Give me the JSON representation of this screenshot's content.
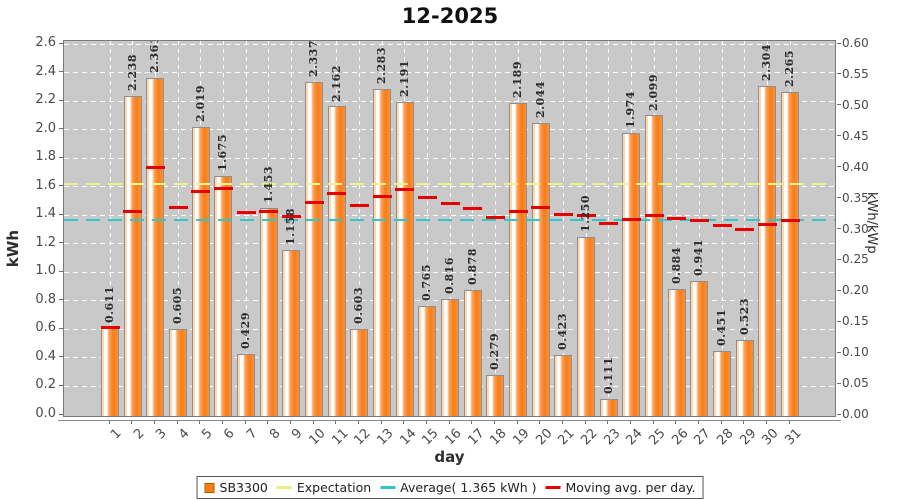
{
  "title": "12-2025",
  "chart_data": {
    "type": "bar",
    "title": "12-2025",
    "xlabel": "day",
    "ylabel_left": "kWh",
    "ylabel_right": "kWh/kWp",
    "ylim_left": [
      0.0,
      2.6
    ],
    "ylim_right": [
      0.0,
      0.6
    ],
    "yticks_left": [
      "0.0",
      "0.2",
      "0.4",
      "0.6",
      "0.8",
      "1.0",
      "1.2",
      "1.4",
      "1.6",
      "1.8",
      "2.0",
      "2.2",
      "2.4",
      "2.6"
    ],
    "yticks_right": [
      "0.00",
      "0.05",
      "0.10",
      "0.15",
      "0.20",
      "0.25",
      "0.30",
      "0.35",
      "0.40",
      "0.45",
      "0.50",
      "0.55",
      "0.60"
    ],
    "days": [
      1,
      2,
      3,
      4,
      5,
      6,
      7,
      8,
      9,
      10,
      11,
      12,
      13,
      14,
      15,
      16,
      17,
      18,
      19,
      20,
      21,
      22,
      23,
      24,
      25,
      26,
      27,
      28,
      29,
      30,
      31
    ],
    "grid": true,
    "legend_position": "bottom",
    "series": [
      {
        "name": "SB3300",
        "type": "bar",
        "color": "#f87e18",
        "values": [
          0.611,
          2.238,
          2.361,
          0.605,
          2.019,
          1.675,
          0.429,
          1.453,
          1.158,
          2.337,
          2.162,
          0.603,
          2.283,
          2.191,
          0.765,
          0.816,
          0.878,
          0.279,
          2.189,
          2.044,
          0.423,
          1.25,
          0.111,
          1.974,
          2.099,
          0.884,
          0.941,
          0.451,
          0.523,
          2.304,
          2.265
        ]
      },
      {
        "name": "Expectation",
        "type": "dashed-hline",
        "color": "#f2f28c",
        "value": 1.62
      },
      {
        "name": "Average( 1.365 kWh )",
        "type": "dashed-hline",
        "color": "#2fc7c9",
        "value": 1.365
      },
      {
        "name": "Moving avg. per day.",
        "type": "per-day-segments",
        "color": "#e60000",
        "values": [
          0.611,
          1.425,
          1.737,
          1.454,
          1.567,
          1.585,
          1.42,
          1.424,
          1.394,
          1.489,
          1.55,
          1.471,
          1.533,
          1.58,
          1.526,
          1.482,
          1.446,
          1.381,
          1.424,
          1.455,
          1.406,
          1.399,
          1.343,
          1.369,
          1.398,
          1.378,
          1.362,
          1.33,
          1.302,
          1.335,
          1.365
        ]
      }
    ]
  },
  "legend": {
    "items": [
      {
        "label": "SB3300",
        "marker": "square",
        "color": "#f87e18"
      },
      {
        "label": "Expectation",
        "marker": "dash",
        "color": "#eeee7e"
      },
      {
        "label": "Average( 1.365 kWh )",
        "marker": "dash",
        "color": "#2fc7c9"
      },
      {
        "label": "Moving avg. per day.",
        "marker": "dash",
        "color": "#e60000"
      }
    ]
  }
}
